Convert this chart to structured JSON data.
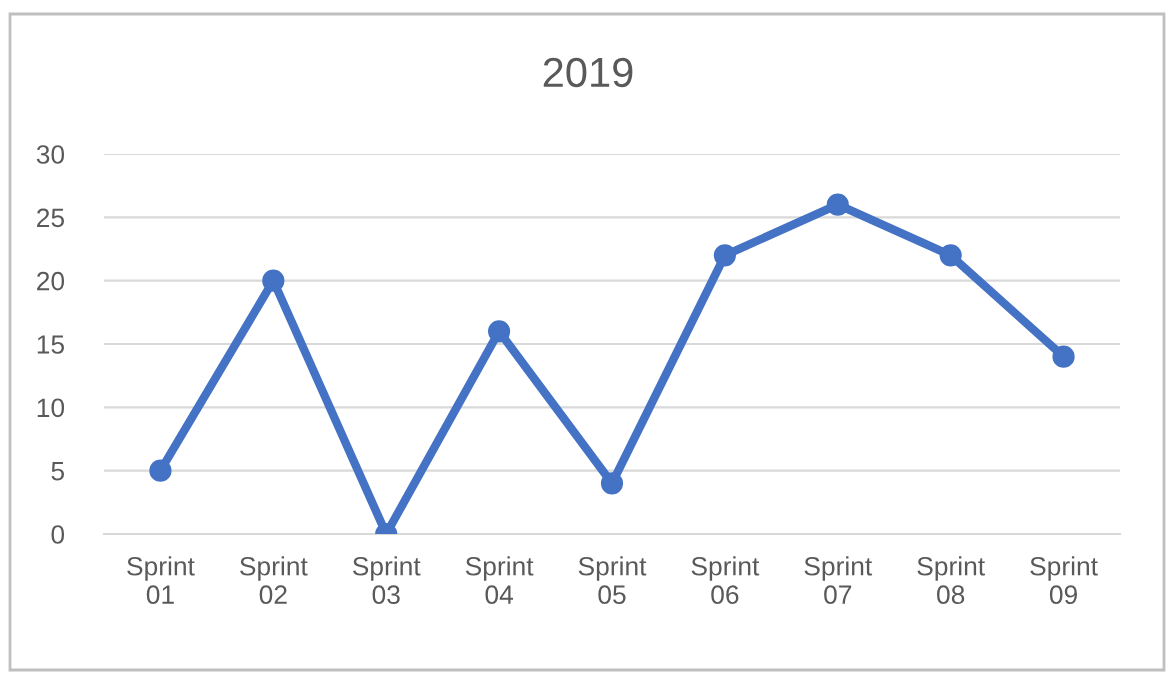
{
  "chart_data": {
    "type": "line",
    "title": "2019",
    "categories": [
      "Sprint\n01",
      "Sprint\n02",
      "Sprint\n03",
      "Sprint\n04",
      "Sprint\n05",
      "Sprint\n06",
      "Sprint\n07",
      "Sprint\n08",
      "Sprint\n09"
    ],
    "series": [
      {
        "color": "#4472c4",
        "values": [
          5,
          20,
          0,
          16,
          4,
          22,
          26,
          22,
          14
        ]
      }
    ],
    "ylim": [
      0,
      30
    ],
    "yticks": [
      0,
      5,
      10,
      15,
      20,
      25,
      30
    ],
    "grid": "y",
    "legend": false,
    "marker": "circle",
    "line_style": "solid"
  }
}
